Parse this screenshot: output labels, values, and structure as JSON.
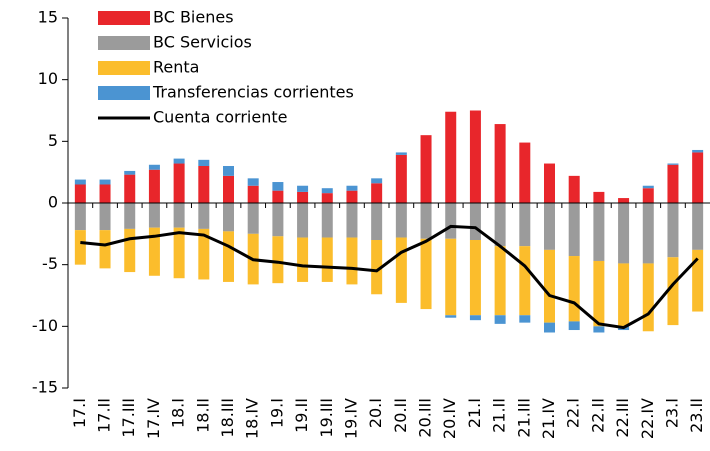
{
  "chart_data": {
    "type": "bar",
    "stacked": true,
    "categories": [
      "17.I",
      "17.II",
      "17.III",
      "17.IV",
      "18.I",
      "18.II",
      "18.III",
      "18.IV",
      "19.I",
      "19.II",
      "19.III",
      "19.IV",
      "20.I",
      "20.II",
      "20.III",
      "20.IV",
      "21.I",
      "21.II",
      "21.III",
      "21.IV",
      "22.I",
      "22.II",
      "22.III",
      "22.IV",
      "23.I",
      "23.II"
    ],
    "series": [
      {
        "name": "BC Bienes",
        "color": "#e8262b",
        "values": [
          1.5,
          1.5,
          2.3,
          2.7,
          3.2,
          3.0,
          2.2,
          1.4,
          1.0,
          0.9,
          0.8,
          1.0,
          1.6,
          3.9,
          5.5,
          7.4,
          7.5,
          6.4,
          4.9,
          3.2,
          2.2,
          0.9,
          0.4,
          1.2,
          3.1,
          4.1
        ]
      },
      {
        "name": "BC Servicios",
        "color": "#9b9b9b",
        "values": [
          -2.2,
          -2.2,
          -2.1,
          -2.0,
          -2.0,
          -2.1,
          -2.3,
          -2.5,
          -2.7,
          -2.8,
          -2.8,
          -2.8,
          -3.0,
          -2.8,
          -2.9,
          -2.9,
          -3.0,
          -3.5,
          -3.5,
          -3.8,
          -4.3,
          -4.7,
          -4.9,
          -4.9,
          -4.4,
          -3.8
        ]
      },
      {
        "name": "Renta",
        "color": "#fbbd2c",
        "values": [
          -2.8,
          -3.1,
          -3.5,
          -3.9,
          -4.1,
          -4.1,
          -4.1,
          -4.1,
          -3.8,
          -3.6,
          -3.6,
          -3.8,
          -4.4,
          -5.3,
          -5.7,
          -6.2,
          -6.1,
          -5.6,
          -5.6,
          -5.9,
          -5.3,
          -5.3,
          -5.1,
          -5.5,
          -5.5,
          -5.0
        ]
      },
      {
        "name": "Transferencias corrientes",
        "color": "#4b94d2",
        "values": [
          0.4,
          0.4,
          0.3,
          0.4,
          0.4,
          0.5,
          0.8,
          0.6,
          0.7,
          0.5,
          0.4,
          0.4,
          0.4,
          0.2,
          0,
          -0.2,
          -0.4,
          -0.7,
          -0.6,
          -0.8,
          -0.7,
          -0.5,
          -0.3,
          0.2,
          0.1,
          0.2
        ]
      },
      {
        "name": "Cuenta corriente",
        "type": "line",
        "color": "#000000",
        "values": [
          -3.2,
          -3.4,
          -2.9,
          -2.7,
          -2.4,
          -2.6,
          -3.5,
          -4.6,
          -4.8,
          -5.1,
          -5.2,
          -5.3,
          -5.5,
          -4.0,
          -3.1,
          -1.9,
          -2.0,
          -3.5,
          -5.1,
          -7.5,
          -8.1,
          -9.8,
          -10.1,
          -9.0,
          -6.6,
          -4.5
        ]
      }
    ],
    "ylim": [
      -15,
      15
    ],
    "yticks": [
      -15,
      -10,
      -5,
      0,
      5,
      10,
      15
    ],
    "legend": "upper left"
  }
}
